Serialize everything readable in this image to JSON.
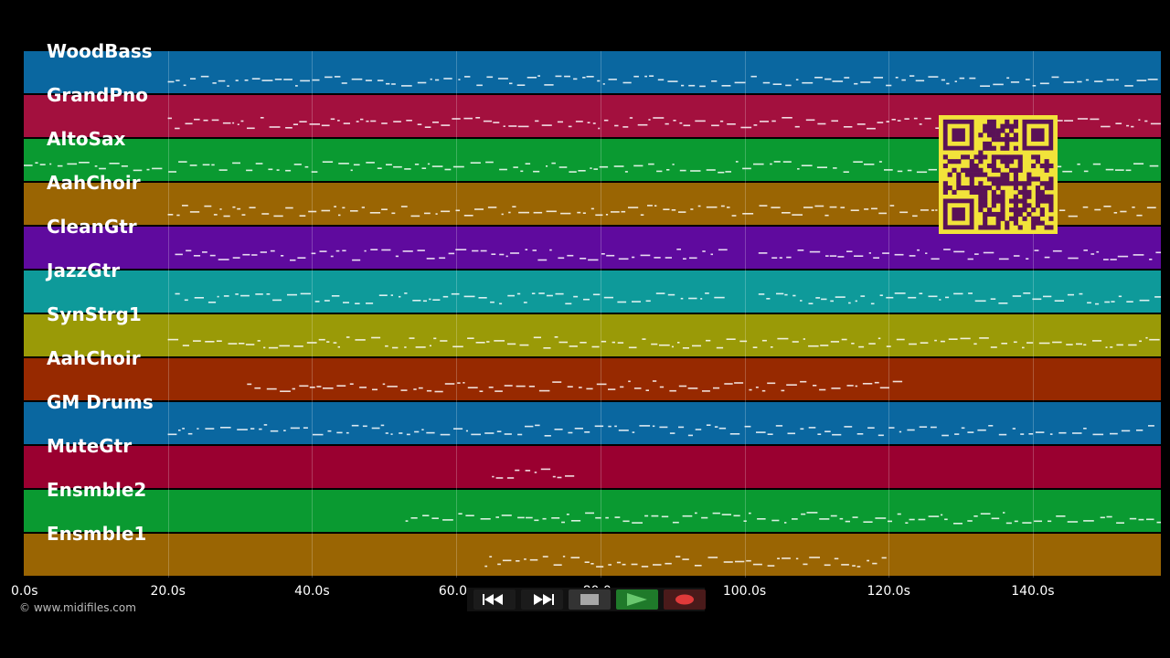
{
  "tracks": [
    {
      "name": "WoodBass",
      "color": "#0a67a0"
    },
    {
      "name": "GrandPno",
      "color": "#a3103e"
    },
    {
      "name": "AltoSax",
      "color": "#0a9a31"
    },
    {
      "name": "AahChoir",
      "color": "#9a6503"
    },
    {
      "name": "CleanGtr",
      "color": "#5f0a9e"
    },
    {
      "name": "JazzGtr",
      "color": "#0e9a9a"
    },
    {
      "name": "SynStrg1",
      "color": "#9a9a07"
    },
    {
      "name": "AahChoir",
      "color": "#972900"
    },
    {
      "name": "GM Drums",
      "color": "#0a67a0"
    },
    {
      "name": "MuteGtr",
      "color": "#9a0030"
    },
    {
      "name": "Ensmble2",
      "color": "#0a9a31"
    },
    {
      "name": "Ensmble1",
      "color": "#9a6503"
    }
  ],
  "time_axis": {
    "ticks": [
      "0.0s",
      "20.0s",
      "40.0s",
      "60.0s",
      "80.0s",
      "100.0s",
      "120.0s",
      "140.0s"
    ]
  },
  "credit": "© www.midifiles.com",
  "transport": {
    "rewind": "rewind-icon",
    "fast_forward": "fast-forward-icon",
    "stop": "stop-icon",
    "play": "play-icon",
    "record": "record-icon",
    "colors": {
      "play_bg": "#1f7a2a",
      "play_fg": "#69c86e",
      "record_fg": "#e03a3a",
      "stop_fg": "#a8a8a8"
    }
  },
  "qr_colors": {
    "background": "#f2e33a",
    "foreground": "#5a1257"
  }
}
